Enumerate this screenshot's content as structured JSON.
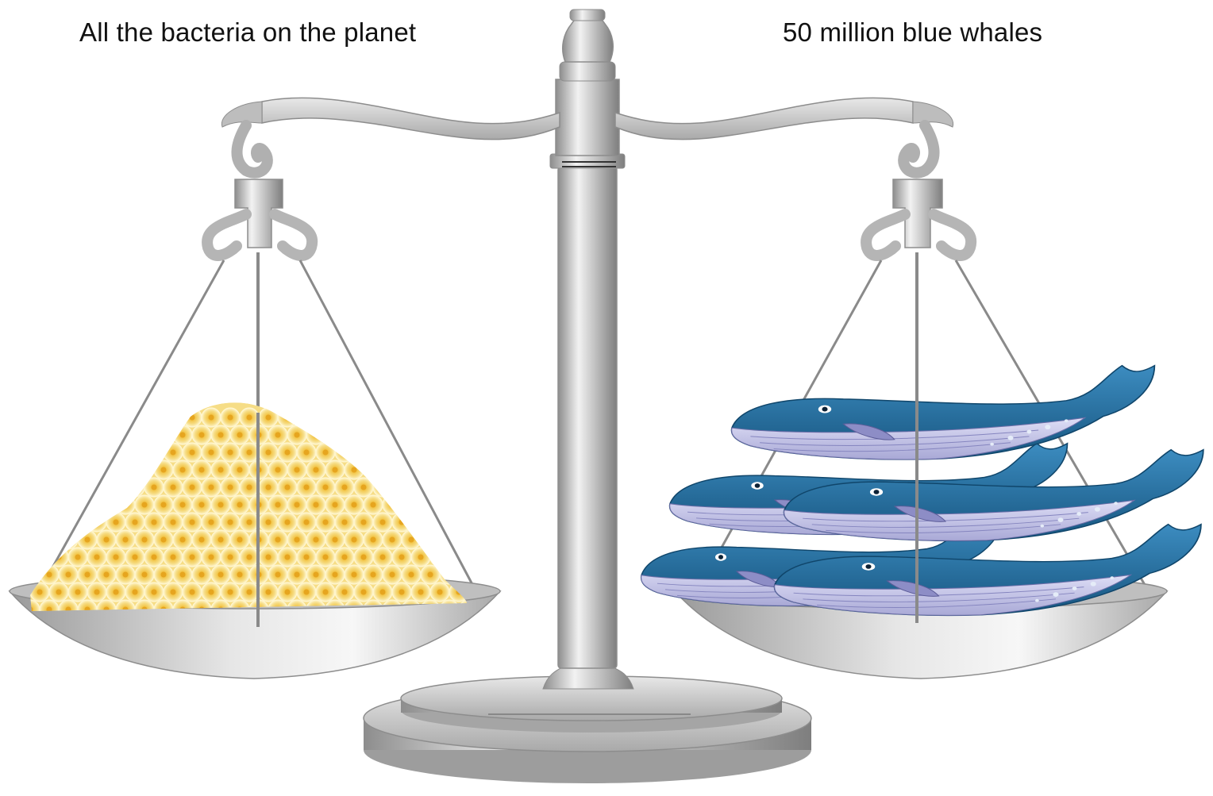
{
  "labels": {
    "left": "All the bacteria on the planet",
    "right": "50 million blue whales"
  },
  "scale": {
    "balanced": true,
    "metal_color": "#c6c6c6",
    "metal_dark": "#8d8d8d",
    "metal_light": "#f2f2f2"
  },
  "bacteria": {
    "fill": "#f6dd86",
    "center": "#e6a51f",
    "edge": "#fff6cf"
  },
  "whales": {
    "count_shown": 5,
    "back": "#1f6ea3",
    "belly": "#c6c6ea",
    "spots": "#e5ecf8"
  }
}
